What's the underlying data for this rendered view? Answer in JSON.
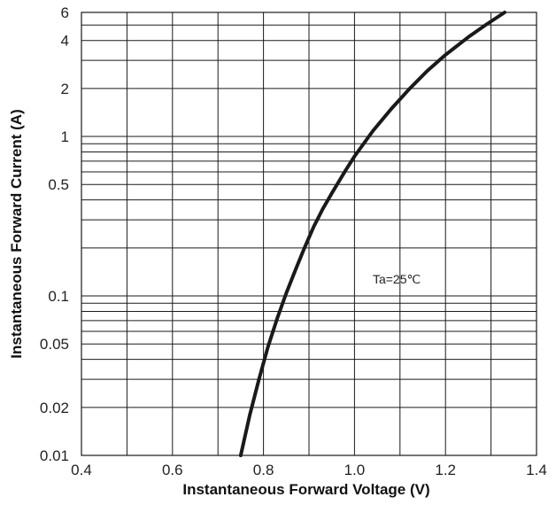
{
  "chart_data": {
    "type": "line",
    "title": "",
    "xlabel": "Instantaneous Forward Voltage (V)",
    "ylabel": "Instantaneous Forward Current (A)",
    "x_scale": "linear",
    "y_scale": "log",
    "xlim": [
      0.4,
      1.4
    ],
    "ylim": [
      0.01,
      6
    ],
    "x_ticks": [
      0.4,
      0.6,
      0.8,
      1.0,
      1.2,
      1.4
    ],
    "x_tick_labels": [
      "0.4",
      "0.6",
      "0.8",
      "1.0",
      "1.2",
      "1.4"
    ],
    "y_ticks": [
      0.01,
      0.02,
      0.05,
      0.1,
      0.5,
      1,
      2,
      4,
      6
    ],
    "y_tick_labels": [
      "0.01",
      "0.02",
      "0.05",
      "0.1",
      "0.5",
      "1",
      "2",
      "4",
      "6"
    ],
    "x_grid": [
      0.4,
      0.5,
      0.6,
      0.7,
      0.8,
      0.9,
      1.0,
      1.1,
      1.2,
      1.3,
      1.4
    ],
    "y_grid": [
      0.01,
      0.02,
      0.03,
      0.04,
      0.05,
      0.06,
      0.07,
      0.08,
      0.09,
      0.1,
      0.2,
      0.3,
      0.4,
      0.5,
      0.6,
      0.7,
      0.8,
      0.9,
      1,
      2,
      3,
      4,
      5,
      6
    ],
    "grid": true,
    "annotations": [
      {
        "text": "Ta=25℃",
        "x": 1.04,
        "y": 0.1
      }
    ],
    "series": [
      {
        "x": [
          0.75,
          0.77,
          0.79,
          0.81,
          0.83,
          0.85,
          0.87,
          0.89,
          0.91,
          0.93,
          0.95,
          0.98,
          1.0,
          1.04,
          1.08,
          1.12,
          1.16,
          1.2,
          1.25,
          1.29,
          1.33
        ],
        "y": [
          0.01,
          0.018,
          0.03,
          0.048,
          0.072,
          0.104,
          0.145,
          0.2,
          0.27,
          0.35,
          0.44,
          0.61,
          0.75,
          1.08,
          1.48,
          1.98,
          2.58,
          3.25,
          4.2,
          5.05,
          6.0
        ],
        "color": "#1a1a1a"
      }
    ]
  }
}
